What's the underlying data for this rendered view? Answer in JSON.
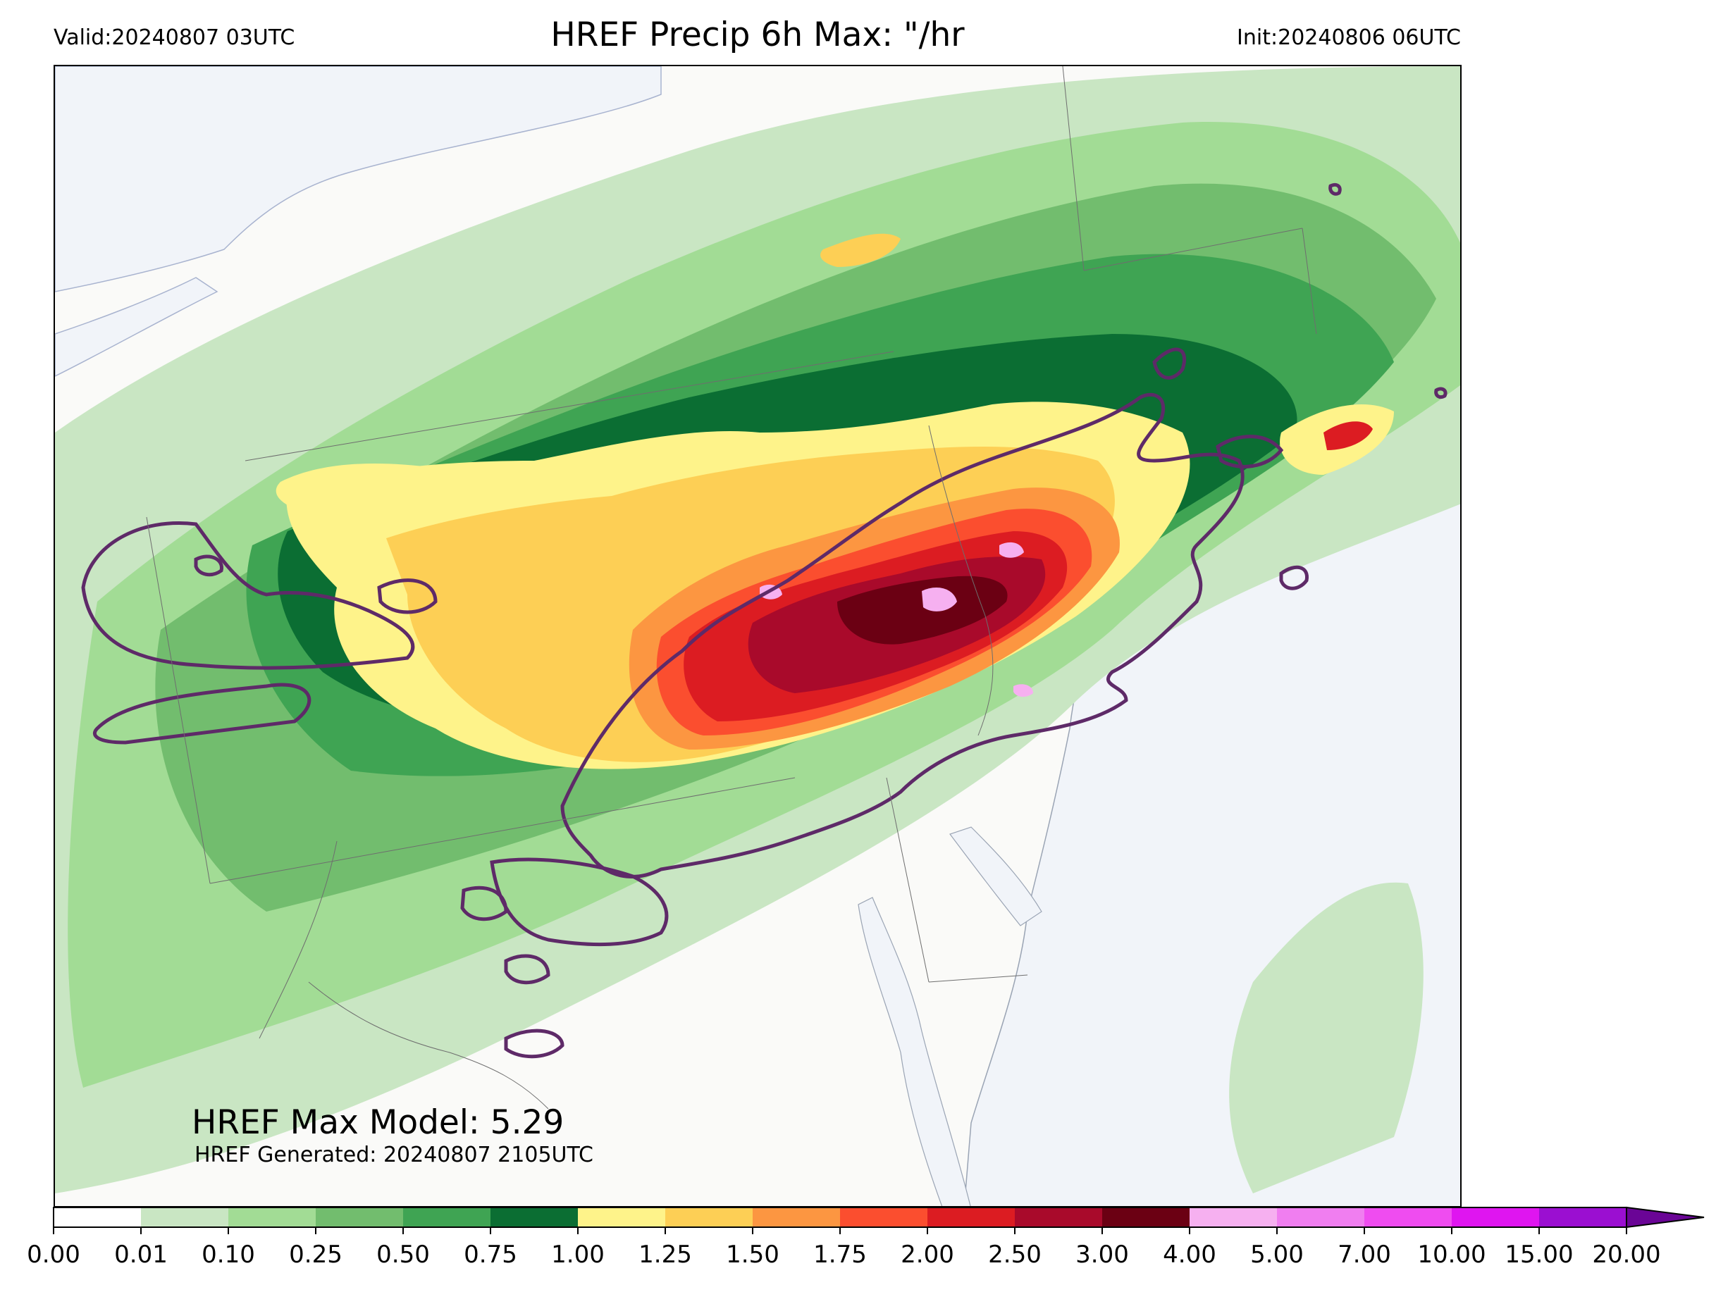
{
  "header": {
    "valid": "Valid:20240807 03UTC",
    "title": "HREF Precip 6h Max: \"/hr",
    "init": "Init:20240806 06UTC"
  },
  "annotations": {
    "max_model": "HREF Max Model: 5.29",
    "generated": "HREF Generated: 20240807 2105UTC"
  },
  "colorbar": {
    "ticks": [
      "0.00",
      "0.01",
      "0.10",
      "0.25",
      "0.50",
      "0.75",
      "1.00",
      "1.25",
      "1.50",
      "1.75",
      "2.00",
      "2.50",
      "3.00",
      "4.00",
      "5.00",
      "7.00",
      "10.00",
      "15.00",
      "20.00"
    ],
    "colors": [
      "#ffffff",
      "#c9e6c3",
      "#a2dc95",
      "#72bd6e",
      "#3fa453",
      "#0b6e33",
      "#fef38a",
      "#fdcf55",
      "#fc9641",
      "#fb4e2f",
      "#dc1c22",
      "#a90a2b",
      "#6b0013",
      "#f6b0f0",
      "#f07ef0",
      "#ef4cf0",
      "#df15f0",
      "#9b0fd1"
    ],
    "extend_color": "#6a0596"
  },
  "map": {
    "land_color": "#fafaf8",
    "water_color": "#f1f4f9",
    "contour_color": "#5e2a68",
    "region": "Mid-Atlantic and Northeast United States",
    "max_cell_value": 5.29
  }
}
